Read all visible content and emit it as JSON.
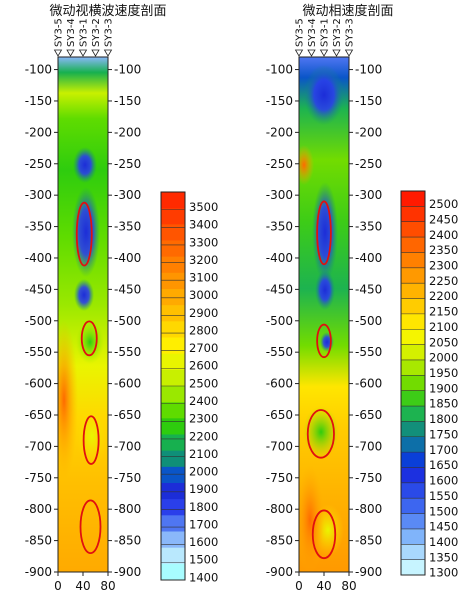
{
  "chart_data": [
    {
      "type": "heatmap",
      "title": "微动视横波速度剖面",
      "stations": [
        "SY3-5",
        "SY3-4",
        "SY3-1",
        "SY3-2",
        "SY3-3"
      ],
      "station_x": [
        0,
        20,
        40,
        60,
        80
      ],
      "xticks": [
        0,
        40,
        80
      ],
      "xlim": [
        0,
        80
      ],
      "ylim": [
        -900,
        -80
      ],
      "yticks": [
        -100,
        -150,
        -200,
        -250,
        -300,
        -350,
        -400,
        -450,
        -500,
        -550,
        -600,
        -650,
        -700,
        -750,
        -800,
        -850,
        -900
      ],
      "colorbar": {
        "ticks": [
          3500,
          3400,
          3300,
          3200,
          3100,
          3000,
          2900,
          2800,
          2700,
          2600,
          2500,
          2400,
          2300,
          2200,
          2100,
          2000,
          1900,
          1800,
          1700,
          1600,
          1500,
          1400
        ],
        "colors": [
          "#ff2a00",
          "#ff3c00",
          "#ff5500",
          "#ff6a00",
          "#ff8000",
          "#ff9500",
          "#ffaa00",
          "#ffc000",
          "#ffd800",
          "#ffee00",
          "#e9f500",
          "#c8f000",
          "#9ae800",
          "#5fdc00",
          "#2ecc0e",
          "#17b04f",
          "#0f8f78",
          "#0a55c8",
          "#1c2dd8",
          "#2a3fea",
          "#4f76f2",
          "#8ab8fa",
          "#b9e8fd",
          "#a8fcff"
        ]
      },
      "annotations": [
        {
          "shape": "ellipse",
          "x": 42,
          "y": -362,
          "rx": 12,
          "ry": 50
        },
        {
          "shape": "ellipse",
          "x": 50,
          "y": -528,
          "rx": 12,
          "ry": 27
        },
        {
          "shape": "ellipse",
          "x": 53,
          "y": -690,
          "rx": 12,
          "ry": 38
        },
        {
          "shape": "ellipse",
          "x": 52,
          "y": -828,
          "rx": 16,
          "ry": 42
        }
      ]
    },
    {
      "type": "heatmap",
      "title": "微动相速度剖面",
      "stations": [
        "SY3-5",
        "SY3-4",
        "SY3-1",
        "SY3-2",
        "SY3-3"
      ],
      "station_x": [
        0,
        20,
        40,
        60,
        80
      ],
      "xticks": [
        0,
        40,
        80
      ],
      "xlim": [
        0,
        80
      ],
      "ylim": [
        -900,
        -80
      ],
      "yticks": [
        -100,
        -150,
        -200,
        -250,
        -300,
        -350,
        -400,
        -450,
        -500,
        -550,
        -600,
        -650,
        -700,
        -750,
        -800,
        -850,
        -900
      ],
      "colorbar": {
        "ticks": [
          2500,
          2450,
          2400,
          2350,
          2300,
          2250,
          2200,
          2150,
          2100,
          2050,
          2000,
          1950,
          1900,
          1850,
          1800,
          1750,
          1700,
          1650,
          1600,
          1550,
          1500,
          1450,
          1400,
          1350,
          1300
        ],
        "colors": [
          "#ff1a00",
          "#ff3300",
          "#ff4d00",
          "#ff6600",
          "#ff8000",
          "#ff9900",
          "#ffb300",
          "#ffcc00",
          "#ffe600",
          "#f5f500",
          "#d4f000",
          "#a8e800",
          "#72dc00",
          "#3dcc17",
          "#1db350",
          "#128f7a",
          "#0d6fa8",
          "#0a3fd8",
          "#1c30e0",
          "#2a4ae8",
          "#3d66f0",
          "#5a8af5",
          "#80b4fa",
          "#a9d8fd",
          "#c7f4ff"
        ]
      },
      "annotations": [
        {
          "shape": "ellipse",
          "x": 40,
          "y": -360,
          "rx": 11,
          "ry": 50
        },
        {
          "shape": "ellipse",
          "x": 40,
          "y": -532,
          "rx": 11,
          "ry": 26
        },
        {
          "shape": "ellipse",
          "x": 35,
          "y": -680,
          "rx": 21,
          "ry": 38
        },
        {
          "shape": "ellipse",
          "x": 40,
          "y": -840,
          "rx": 18,
          "ry": 38
        }
      ]
    }
  ]
}
